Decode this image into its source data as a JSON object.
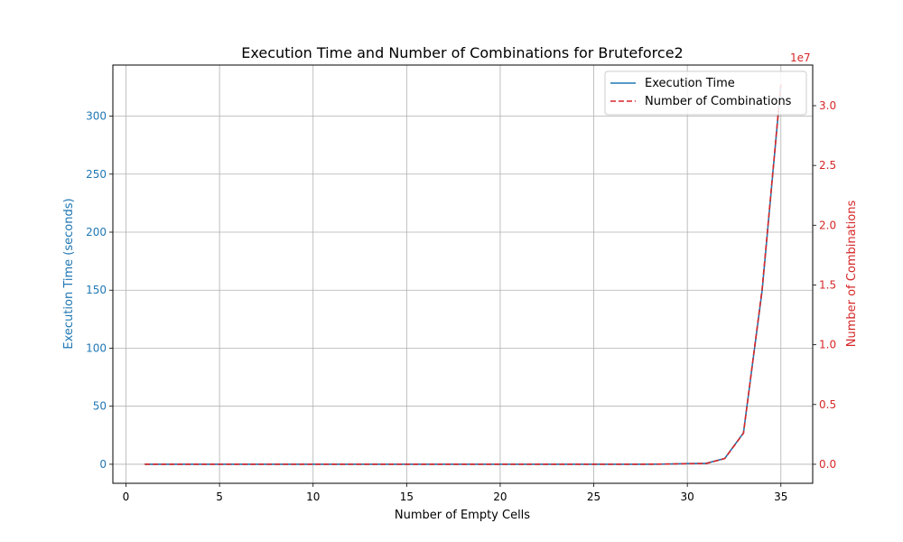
{
  "chart_data": {
    "type": "line",
    "title": "Execution Time and Number of Combinations for Bruteforce2",
    "xlabel": "Number of Empty Cells",
    "ylabel_left": "Execution Time (seconds)",
    "ylabel_right": "Number of Combinations",
    "right_axis_multiplier": "1e7",
    "xlim": [
      -0.7,
      36.7
    ],
    "ylim_left": [
      -16.4,
      344
    ],
    "ylim_right": [
      -1590000,
      33400000
    ],
    "xticks": [
      0,
      5,
      10,
      15,
      20,
      25,
      30,
      35
    ],
    "yticks_left": [
      0,
      50,
      100,
      150,
      200,
      250,
      300
    ],
    "yticks_right": [
      0.0,
      0.5,
      1.0,
      1.5,
      2.0,
      2.5,
      3.0
    ],
    "grid": true,
    "legend_position": "top-right",
    "x": [
      1,
      2,
      3,
      4,
      5,
      6,
      7,
      8,
      9,
      10,
      11,
      12,
      13,
      14,
      15,
      16,
      17,
      18,
      19,
      20,
      21,
      22,
      23,
      24,
      25,
      26,
      27,
      28,
      29,
      30,
      31,
      32,
      33,
      34,
      35
    ],
    "series": [
      {
        "name": "Execution Time",
        "axis": "left",
        "style": "solid",
        "color": "#1f77b4",
        "values": [
          0,
          0,
          0,
          0,
          0,
          0,
          0,
          0,
          0,
          0,
          0,
          0,
          0,
          0,
          0,
          0,
          0,
          0,
          0,
          0,
          0,
          0,
          0,
          0,
          0,
          0,
          0,
          0,
          0.2,
          0.6,
          0.8,
          5,
          27,
          150,
          327
        ]
      },
      {
        "name": "Number of Combinations",
        "axis": "right",
        "style": "dashed",
        "color": "#d62728",
        "values": [
          0,
          0,
          0,
          0,
          0,
          0,
          0,
          0,
          0,
          0,
          0,
          0,
          0,
          0,
          0,
          0,
          0,
          0,
          0,
          0,
          0,
          0,
          0,
          0,
          0,
          0,
          0,
          10000,
          20000,
          50000,
          60000,
          480000,
          2600000,
          14700000,
          31800000
        ]
      }
    ]
  }
}
